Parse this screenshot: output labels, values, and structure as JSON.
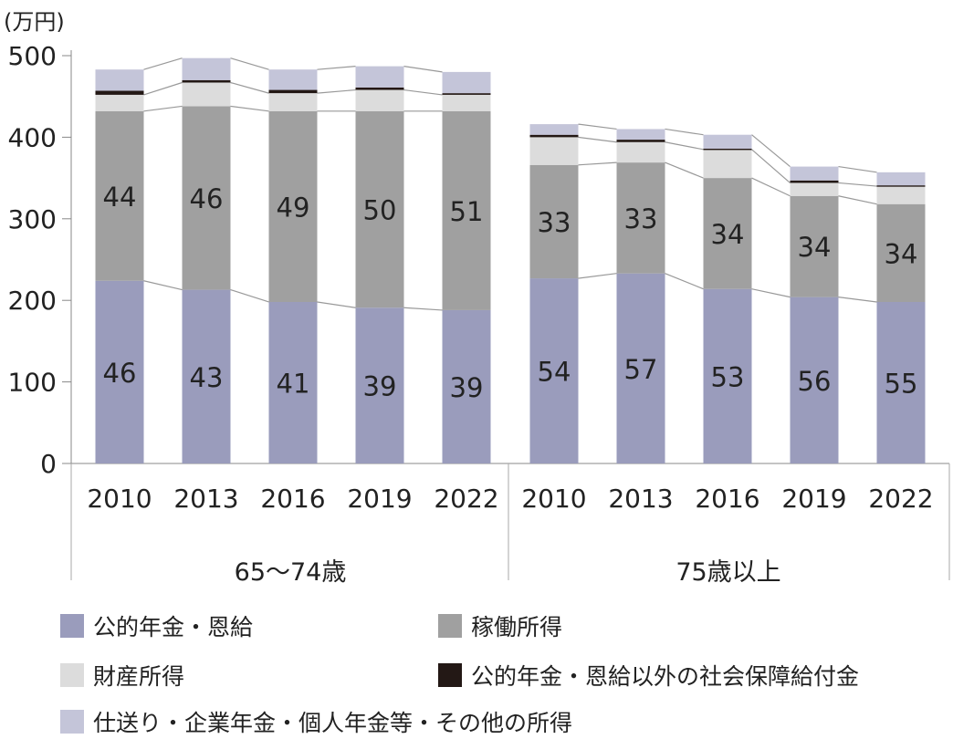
{
  "chart_data": {
    "type": "bar",
    "stacked": true,
    "ylabel": "(万円)",
    "ylim": [
      0,
      500
    ],
    "yticks": [
      0,
      100,
      200,
      300,
      400,
      500
    ],
    "grid": false,
    "legend_placement": "bottom",
    "groups": [
      {
        "label": "65〜74歳",
        "categories": [
          "2010",
          "2013",
          "2016",
          "2019",
          "2022"
        ]
      },
      {
        "label": "75歳以上",
        "categories": [
          "2010",
          "2013",
          "2016",
          "2019",
          "2022"
        ]
      }
    ],
    "series": [
      {
        "name": "公的年金・恩給",
        "color": "#9a9cbc",
        "values": [
          224,
          213,
          198,
          191,
          188,
          227,
          233,
          214,
          204,
          198
        ],
        "labels": [
          "46",
          "43",
          "41",
          "39",
          "39",
          "54",
          "57",
          "53",
          "56",
          "55"
        ]
      },
      {
        "name": "稼働所得",
        "color": "#a0a0a0",
        "values": [
          208,
          225,
          234,
          241,
          244,
          139,
          136,
          136,
          124,
          120
        ],
        "labels": [
          "44",
          "46",
          "49",
          "50",
          "51",
          "33",
          "33",
          "34",
          "34",
          "34"
        ]
      },
      {
        "name": "財産所得",
        "color": "#dcdcdc",
        "values": [
          20,
          29,
          22,
          26,
          20,
          34,
          25,
          35,
          16,
          22
        ]
      },
      {
        "name": "公的年金・恩給以外の社会保障給付金",
        "color": "#231815",
        "values": [
          5,
          3,
          4,
          3,
          2,
          3,
          3,
          1,
          3,
          1
        ]
      },
      {
        "name": "仕送り・企業年金・個人年金等・その他の所得",
        "color": "#c4c5d9",
        "values": [
          26,
          27,
          25,
          26,
          26,
          13,
          13,
          17,
          17,
          16
        ]
      }
    ]
  }
}
